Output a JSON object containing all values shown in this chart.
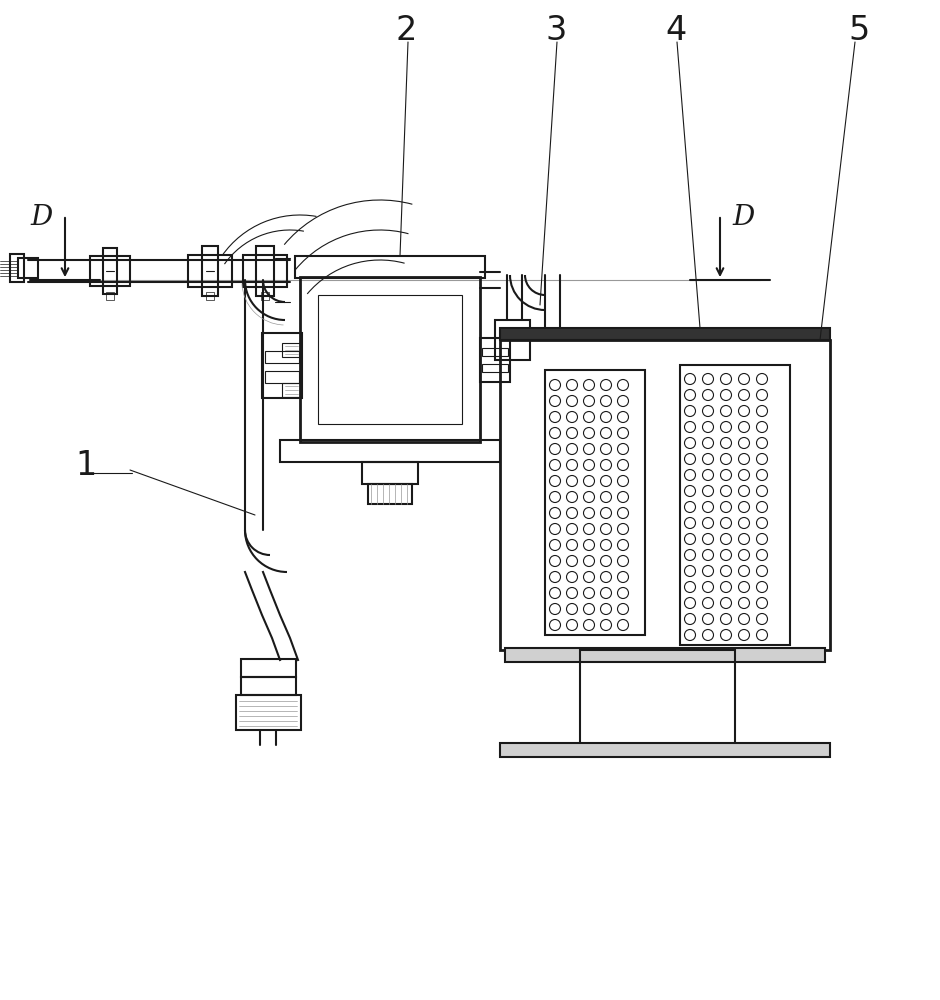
{
  "bg_color": "#ffffff",
  "line_color": "#1a1a1a",
  "gray_color": "#999999",
  "light_gray": "#d0d0d0",
  "med_gray": "#aaaaaa",
  "lw_main": 1.5,
  "lw_thick": 2.0,
  "lw_thin": 0.8,
  "lw_ultra": 0.5,
  "label_fs": 24,
  "d_fs": 20,
  "figw": 9.4,
  "figh": 10.0,
  "dpi": 100
}
